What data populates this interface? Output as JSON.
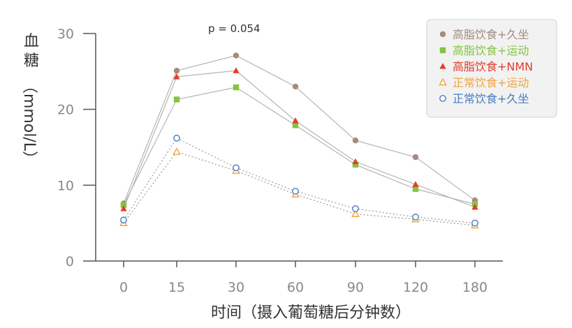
{
  "chart_data": {
    "type": "line",
    "categories": [
      "0",
      "15",
      "30",
      "60",
      "90",
      "120",
      "180"
    ],
    "xlabel": "时间（摄入葡萄糖后分钟数）",
    "ylabel": "血糖（mmol/L）",
    "ylim": [
      0,
      30
    ],
    "yticks": [
      "0",
      "10",
      "20",
      "30"
    ],
    "annotation": "p = 0.054",
    "grid": false,
    "legend_position": "top-right",
    "series": [
      {
        "name": "高脂饮食+久坐",
        "values": [
          7.6,
          25.1,
          27.1,
          23.0,
          15.9,
          13.7,
          8.0
        ],
        "color": "#a68a80",
        "marker": "circle",
        "line": "solid"
      },
      {
        "name": "高脂饮食+运动",
        "values": [
          7.4,
          21.3,
          22.9,
          17.9,
          12.7,
          9.5,
          7.5
        ],
        "color": "#86c43f",
        "marker": "square",
        "line": "solid"
      },
      {
        "name": "高脂饮食+NMN",
        "values": [
          6.9,
          24.3,
          25.1,
          18.5,
          13.1,
          10.1,
          7.1
        ],
        "color": "#e53b2d",
        "marker": "triangle",
        "line": "solid"
      },
      {
        "name": "正常饮食+运动",
        "values": [
          5.0,
          14.4,
          11.9,
          8.8,
          6.2,
          5.5,
          4.7
        ],
        "color": "#f2a33c",
        "marker": "triangle-open",
        "line": "dotted"
      },
      {
        "name": "正常饮食+久坐",
        "values": [
          5.4,
          16.2,
          12.3,
          9.2,
          6.9,
          5.8,
          5.0
        ],
        "color": "#4a7cc2",
        "marker": "circle-open",
        "line": "dotted"
      }
    ]
  }
}
